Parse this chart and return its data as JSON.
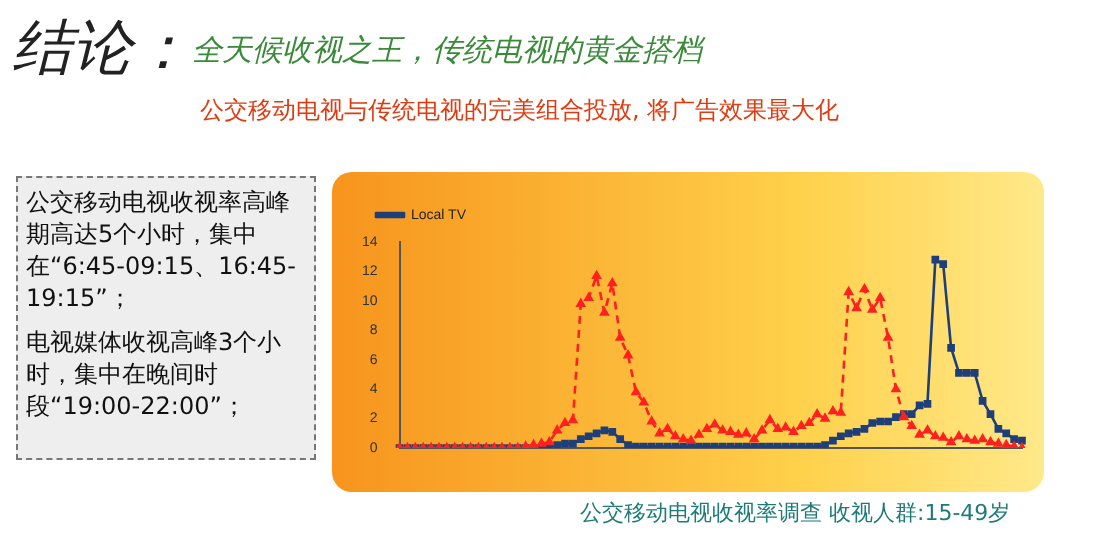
{
  "chart_data": {
    "type": "line",
    "title": "结论：",
    "subtitle": "全天候收视之王，传统电视的黄金搭档",
    "annotations": [
      "公交移动电视与传统电视的完美组合投放, 将广告效果最大化",
      "公交移动电视收视率高峰期高达5个小时，集中在“6:45-09:15、16:45-19:15”；",
      "电视媒体收视高峰3个小时，集中在晚间时段“19:00-22:00”；",
      "公交移动电视收视率调查  收视人群:15-49岁"
    ],
    "categories": [
      null,
      null,
      null,
      null,
      null,
      null,
      null,
      null,
      null,
      null,
      null,
      null,
      null,
      null,
      null,
      null,
      null,
      null,
      null,
      null,
      null,
      null,
      null,
      null,
      null,
      null,
      null,
      null,
      null,
      null,
      null,
      null,
      null,
      null,
      null,
      null,
      null,
      null,
      null,
      null,
      null,
      null,
      null,
      null,
      null,
      null,
      null,
      null,
      null,
      null,
      null,
      null,
      null,
      null,
      null,
      null,
      null,
      null,
      null,
      null,
      null,
      null,
      null,
      null,
      null,
      null,
      null,
      null,
      null,
      null,
      null,
      null,
      null,
      null,
      null,
      null,
      null,
      null,
      null,
      null
    ],
    "series": [
      {
        "color": "#ff2020",
        "marker": "triangle",
        "line_style": "dashed",
        "values": [
          0,
          0,
          0,
          0,
          0,
          0,
          0,
          0,
          0,
          0,
          0,
          0,
          0,
          0,
          0,
          0,
          0.1,
          0.2,
          0.3,
          0.4,
          1.2,
          1.7,
          1.9,
          9.8,
          10.2,
          11.7,
          9.2,
          11.2,
          7.5,
          6.3,
          3.8,
          3.1,
          1.8,
          1.0,
          1.3,
          0.8,
          0.6,
          0.5,
          0.9,
          1.3,
          1.6,
          1.2,
          1.1,
          0.9,
          1.0,
          0.6,
          1.2,
          1.9,
          1.3,
          1.4,
          1.1,
          1.5,
          1.7,
          2.3,
          2.0,
          2.5,
          2.4,
          10.6,
          9.5,
          10.8,
          9.4,
          10.2,
          7.5,
          4.0,
          2.1,
          1.5,
          0.9,
          1.2,
          0.8,
          0.7,
          0.4,
          0.8,
          0.6,
          0.5,
          0.6,
          0.4,
          0.3,
          0.2,
          0.1,
          0
        ]
      },
      {
        "name": "Local TV",
        "color": "#1f3f7a",
        "marker": "square",
        "line_style": "solid",
        "values": [
          0,
          0,
          0,
          0,
          0,
          0,
          0,
          0,
          0,
          0,
          0,
          0,
          0,
          0,
          0,
          0,
          0,
          0,
          0,
          0.1,
          0.2,
          0.3,
          0.3,
          0.6,
          0.8,
          1.0,
          1.2,
          1.1,
          0.6,
          0.2,
          0.1,
          0.1,
          0.1,
          0.1,
          0.1,
          0.1,
          0.1,
          0.1,
          0.1,
          0.1,
          0.1,
          0.1,
          0.1,
          0.1,
          0.1,
          0.1,
          0.1,
          0.1,
          0.1,
          0.1,
          0.1,
          0.1,
          0.1,
          0.1,
          0.2,
          0.5,
          0.8,
          1.0,
          1.1,
          1.3,
          1.7,
          1.8,
          1.8,
          2.1,
          2.3,
          2.3,
          2.9,
          3.0,
          12.8,
          12.5,
          6.8,
          5.1,
          5.1,
          5.1,
          3.2,
          2.3,
          1.3,
          1.0,
          0.6,
          0.5
        ]
      }
    ],
    "ylim": [
      0,
      14
    ],
    "yticks": [
      0,
      2,
      4,
      6,
      8,
      10,
      12,
      14
    ],
    "grid": false,
    "legend": "top left"
  }
}
